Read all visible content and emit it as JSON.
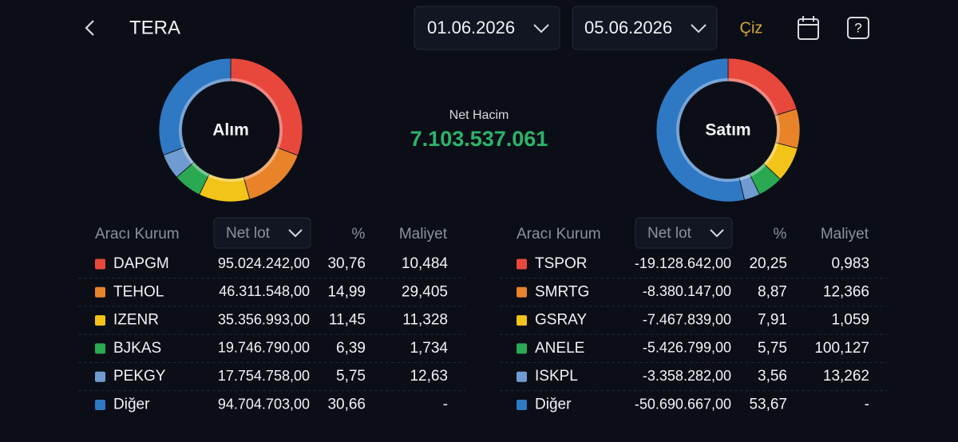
{
  "header": {
    "title": "TERA",
    "date_from": "01.06.2026",
    "date_to": "05.06.2026",
    "draw_button": "Çiz"
  },
  "summary": {
    "label": "Net Hacim",
    "value": "7.103.537.061"
  },
  "panels": [
    {
      "donut_label": "Alım",
      "columns": [
        "Aracı Kurum",
        "Net lot",
        "%",
        "Maliyet"
      ],
      "rows": [
        {
          "name": "DAPGM",
          "color": "#e8483c",
          "net_lot": "95.024.242,00",
          "pct": {
            "value": 30.76,
            "label": "30,76"
          },
          "cost": "10,484"
        },
        {
          "name": "TEHOL",
          "color": "#e8832a",
          "net_lot": "46.311.548,00",
          "pct": {
            "value": 14.99,
            "label": "14,99"
          },
          "cost": "29,405"
        },
        {
          "name": "IZENR",
          "color": "#f2c318",
          "net_lot": "35.356.993,00",
          "pct": {
            "value": 11.45,
            "label": "11,45"
          },
          "cost": "11,328"
        },
        {
          "name": "BJKAS",
          "color": "#2aa952",
          "net_lot": "19.746.790,00",
          "pct": {
            "value": 6.39,
            "label": "6,39"
          },
          "cost": "1,734"
        },
        {
          "name": "PEKGY",
          "color": "#6f9bd1",
          "net_lot": "17.754.758,00",
          "pct": {
            "value": 5.75,
            "label": "5,75"
          },
          "cost": "12,63"
        },
        {
          "name": "Diğer",
          "color": "#2f78c4",
          "net_lot": "94.704.703,00",
          "pct": {
            "value": 30.66,
            "label": "30,66"
          },
          "cost": "-"
        }
      ]
    },
    {
      "donut_label": "Satım",
      "columns": [
        "Aracı Kurum",
        "Net lot",
        "%",
        "Maliyet"
      ],
      "rows": [
        {
          "name": "TSPOR",
          "color": "#e8483c",
          "net_lot": "-19.128.642,00",
          "pct": {
            "value": 20.25,
            "label": "20,25"
          },
          "cost": "0,983"
        },
        {
          "name": "SMRTG",
          "color": "#e8832a",
          "net_lot": "-8.380.147,00",
          "pct": {
            "value": 8.87,
            "label": "8,87"
          },
          "cost": "12,366"
        },
        {
          "name": "GSRAY",
          "color": "#f2c318",
          "net_lot": "-7.467.839,00",
          "pct": {
            "value": 7.91,
            "label": "7,91"
          },
          "cost": "1,059"
        },
        {
          "name": "ANELE",
          "color": "#2aa952",
          "net_lot": "-5.426.799,00",
          "pct": {
            "value": 5.75,
            "label": "5,75"
          },
          "cost": "100,127"
        },
        {
          "name": "ISKPL",
          "color": "#6f9bd1",
          "net_lot": "-3.358.282,00",
          "pct": {
            "value": 3.56,
            "label": "3,56"
          },
          "cost": "13,262"
        },
        {
          "name": "Diğer",
          "color": "#2f78c4",
          "net_lot": "-50.690.667,00",
          "pct": {
            "value": 53.67,
            "label": "53,67"
          },
          "cost": "-"
        }
      ]
    }
  ]
}
